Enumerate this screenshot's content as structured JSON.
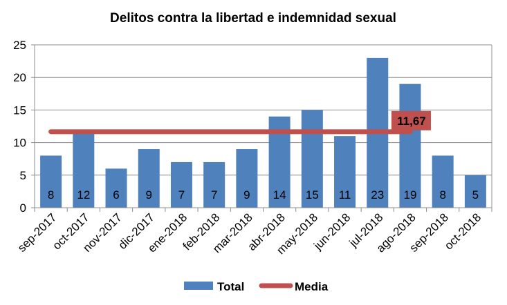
{
  "chart_data": {
    "type": "bar",
    "title": "Delitos contra la libertad e indemnidad sexual",
    "categories": [
      "sep-2017",
      "oct-2017",
      "nov-2017",
      "dic-2017",
      "ene-2018",
      "feb-2018",
      "mar-2018",
      "abr-2018",
      "may-2018",
      "jun-2018",
      "jul-2018",
      "ago-2018",
      "sep-2018",
      "oct-2018"
    ],
    "series": [
      {
        "name": "Total",
        "values": [
          8,
          12,
          6,
          9,
          7,
          7,
          9,
          14,
          15,
          11,
          23,
          19,
          8,
          5
        ],
        "color": "#4f81bd"
      }
    ],
    "mean": {
      "name": "Media",
      "value": 11.67,
      "label": "11,67",
      "color": "#c0504d"
    },
    "yticks": [
      "0",
      "5",
      "10",
      "15",
      "20",
      "25"
    ],
    "ylim": [
      0,
      25
    ],
    "xlabel": "",
    "ylabel": "",
    "grid": true,
    "legend_position": "bottom"
  }
}
